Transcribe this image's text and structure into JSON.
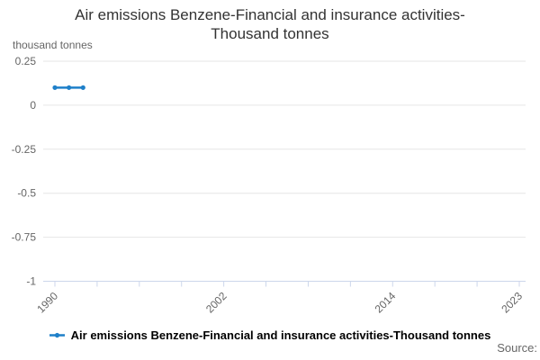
{
  "header": {
    "title_lines": [
      "Air emissions Benzene-Financial and insurance activities-",
      "Thousand tonnes"
    ]
  },
  "axis_unit_label": "thousand tonnes",
  "legend": {
    "label": "Air emissions Benzene-Financial and insurance activities-Thousand tonnes"
  },
  "footer": {
    "source_label": "Source:"
  },
  "colors": {
    "series": "#1f80c9",
    "gridline": "#e6e6e6",
    "axis_line": "#ccd6eb",
    "tick_text": "#666666",
    "title_text": "#333333",
    "legend_text": "#000000"
  },
  "chart_data": {
    "type": "line",
    "title": "Air emissions Benzene-Financial and insurance activities-Thousand tonnes",
    "xlabel": "",
    "ylabel": "thousand tonnes",
    "x": [
      1990,
      1991,
      1992
    ],
    "series": [
      {
        "name": "Air emissions Benzene-Financial and insurance activities-Thousand tonnes",
        "values": [
          0.1,
          0.1,
          0.1
        ]
      }
    ],
    "xlim": [
      1990,
      2023
    ],
    "ylim": [
      -1,
      0.25
    ],
    "yticks": [
      0.25,
      0,
      -0.25,
      -0.5,
      -0.75,
      -1
    ],
    "ytick_labels": [
      "0.25",
      "0",
      "-0.25",
      "-0.5",
      "-0.75",
      "-1"
    ],
    "xticks": [
      1990,
      1993,
      1996,
      1999,
      2002,
      2005,
      2008,
      2011,
      2014,
      2017,
      2020,
      2023
    ],
    "xtick_labels_shown": [
      "1990",
      "2002",
      "2014",
      "2023"
    ],
    "xtick_label_rotation": -45,
    "grid": true,
    "marker": "circle",
    "legend_position": "bottom"
  }
}
